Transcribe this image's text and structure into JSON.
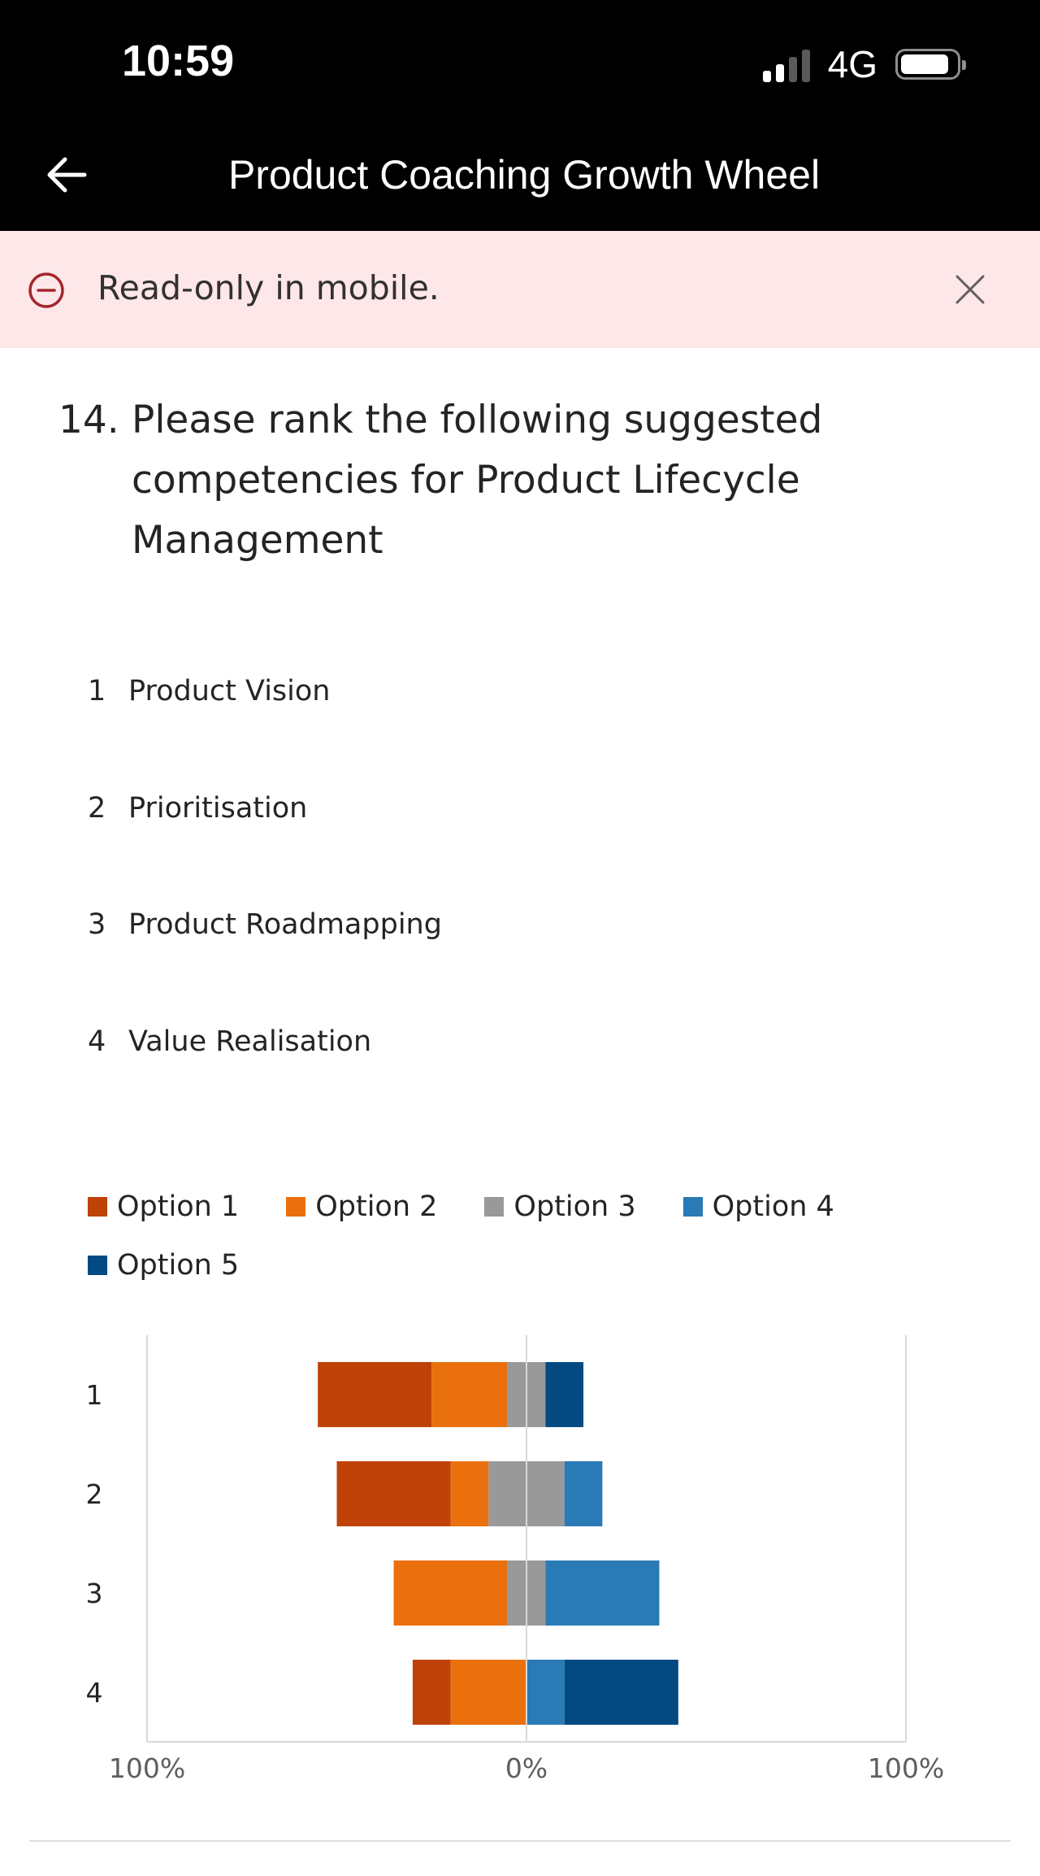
{
  "status_bar": {
    "time": "10:59",
    "network": "4G",
    "signal_bars_active": 2,
    "signal_bars_total": 4,
    "battery_icon": "battery-icon"
  },
  "header": {
    "title": "Product Coaching Growth Wheel",
    "back_icon": "arrow-left-icon",
    "background": "#000000"
  },
  "banner": {
    "message": "Read-only in mobile.",
    "icon": "circle-minus-icon",
    "close_icon": "close-icon",
    "background": "#fde7e9",
    "icon_color": "#a4262c"
  },
  "question": {
    "number": "14.",
    "text": "Please rank the following suggested competencies for Product Lifecycle Management"
  },
  "ranking": {
    "items": [
      {
        "rank": "1",
        "label": "Product Vision"
      },
      {
        "rank": "2",
        "label": "Prioritisation"
      },
      {
        "rank": "3",
        "label": "Product Roadmapping"
      },
      {
        "rank": "4",
        "label": "Value Realisation"
      }
    ]
  },
  "chart_data": {
    "type": "bar",
    "orientation": "horizontal",
    "stacking": "diverging",
    "categories": [
      "1",
      "2",
      "3",
      "4"
    ],
    "series": [
      {
        "name": "Option 1",
        "color": "#bf4209",
        "values": [
          30,
          30,
          0,
          10
        ]
      },
      {
        "name": "Option 2",
        "color": "#ea700d",
        "values": [
          20,
          10,
          30,
          20
        ]
      },
      {
        "name": "Option 3",
        "color": "#999999",
        "values": [
          10,
          20,
          10,
          0
        ]
      },
      {
        "name": "Option 4",
        "color": "#2a7ab5",
        "values": [
          0,
          10,
          30,
          10
        ]
      },
      {
        "name": "Option 5",
        "color": "#034a83",
        "values": [
          10,
          0,
          0,
          30
        ]
      }
    ],
    "x_ticks": [
      "100%",
      "0%",
      "100%"
    ],
    "xlim": [
      -100,
      100
    ],
    "legend_position": "top",
    "grid": false
  }
}
